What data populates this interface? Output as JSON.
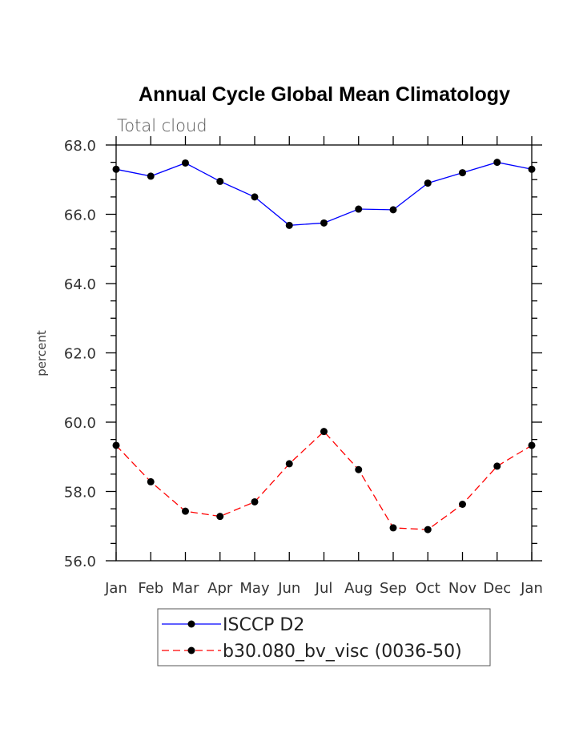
{
  "chart_data": {
    "type": "line",
    "title": "Annual Cycle Global Mean Climatology",
    "subtitle": "Total cloud",
    "xlabel": "",
    "ylabel": "percent",
    "categories": [
      "Jan",
      "Feb",
      "Mar",
      "Apr",
      "May",
      "Jun",
      "Jul",
      "Aug",
      "Sep",
      "Oct",
      "Nov",
      "Dec",
      "Jan"
    ],
    "ylim": [
      56.0,
      68.0
    ],
    "yticks": [
      "56.0",
      "58.0",
      "60.0",
      "62.0",
      "64.0",
      "66.0",
      "68.0"
    ],
    "grid": false,
    "legend_position": "bottom",
    "series": [
      {
        "name": "ISCCP D2",
        "color": "#0000ff",
        "dash": "solid",
        "values": [
          67.3,
          67.1,
          67.48,
          66.95,
          66.5,
          65.68,
          65.75,
          66.15,
          66.13,
          66.9,
          67.2,
          67.5,
          67.3
        ]
      },
      {
        "name": "b30.080_bv_visc (0036-50)",
        "color": "#ff0000",
        "dash": "dashed",
        "values": [
          59.33,
          58.28,
          57.43,
          57.28,
          57.7,
          58.8,
          59.73,
          58.63,
          56.95,
          56.9,
          57.63,
          58.73,
          59.33
        ]
      }
    ]
  }
}
